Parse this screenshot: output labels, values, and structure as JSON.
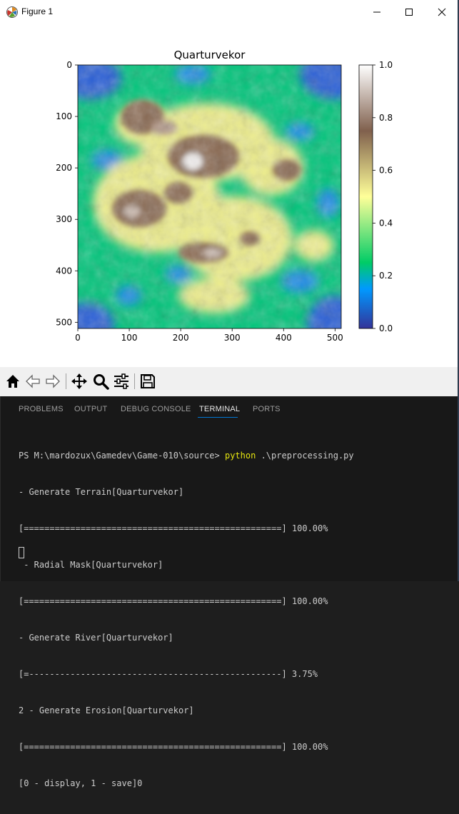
{
  "window": {
    "title": "Figure 1",
    "minimize_glyph": "—",
    "maximize_glyph": "☐",
    "close_glyph": "✕"
  },
  "chart_data": {
    "type": "heatmap",
    "title": "Quarturvekor",
    "x_ticks": [
      "0",
      "100",
      "200",
      "300",
      "400",
      "500"
    ],
    "y_ticks": [
      "0",
      "100",
      "200",
      "300",
      "400",
      "500"
    ],
    "x_tick_values": [
      0,
      100,
      200,
      300,
      400,
      500
    ],
    "y_tick_values": [
      0,
      100,
      200,
      300,
      400,
      500
    ],
    "xlim": [
      0,
      512
    ],
    "ylim": [
      512,
      0
    ],
    "colorbar": {
      "ticks": [
        "0.0",
        "0.2",
        "0.4",
        "0.6",
        "0.8",
        "1.0"
      ],
      "tick_values": [
        0.0,
        0.2,
        0.4,
        0.6,
        0.8,
        1.0
      ],
      "range": [
        0.0,
        1.0
      ],
      "colormap": "terrain"
    },
    "grid": false
  },
  "toolbar": {
    "items": [
      "home-icon",
      "back-icon",
      "forward-icon",
      "pan-icon",
      "zoom-icon",
      "configure-icon",
      "save-icon"
    ]
  },
  "panel": {
    "tabs": [
      {
        "label": "PROBLEMS",
        "active": false
      },
      {
        "label": "OUTPUT",
        "active": false
      },
      {
        "label": "DEBUG CONSOLE",
        "active": false
      },
      {
        "label": "TERMINAL",
        "active": true
      },
      {
        "label": "PORTS",
        "active": false
      }
    ]
  },
  "terminal": {
    "prompt": "PS M:\\mardozux\\Gamedev\\Game-010\\source> ",
    "command": "python",
    "args": " .\\preprocessing.py",
    "lines": [
      "- Generate Terrain[Quarturvekor]",
      "[==================================================] 100.00%",
      " - Radial Mask[Quarturvekor]",
      "[==================================================] 100.00%",
      "- Generate River[Quarturvekor]",
      "[=-------------------------------------------------] 3.75%",
      "2 - Generate Erosion[Quarturvekor]",
      "[==================================================] 100.00%",
      "[0 - display, 1 - save]0"
    ]
  },
  "colors": {
    "terminal_bg": "#181818",
    "terminal_text": "#cccccc",
    "command_yellow": "#e5e510",
    "tab_active_underline": "#0078d4"
  }
}
